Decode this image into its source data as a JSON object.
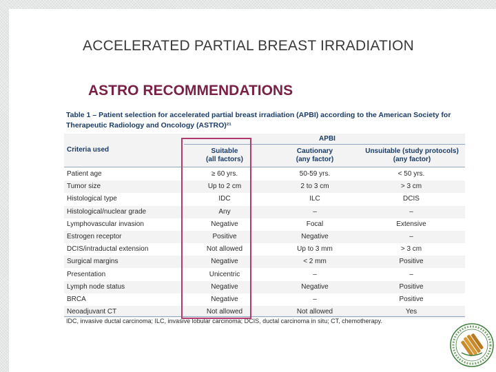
{
  "slide": {
    "title": "ACCELERATED PARTIAL BREAST IRRADIATION",
    "subtitle": "ASTRO RECOMMENDATIONS"
  },
  "table": {
    "caption": "Table 1 – Patient selection for accelerated partial breast irradiation (APBI) according to the American Society for Therapeutic Radiology and Oncology (ASTRO)²¹",
    "group_header": "APBI",
    "headers": {
      "criteria": "Criteria used",
      "suitable": "Suitable\n(all factors)",
      "cautionary": "Cautionary\n(any factor)",
      "unsuitable": "Unsuitable (study protocols)\n(any factor)"
    },
    "rows": [
      {
        "criteria": "Patient age",
        "suitable": "≥ 60 yrs.",
        "cautionary": "50-59 yrs.",
        "unsuitable": "< 50 yrs."
      },
      {
        "criteria": "Tumor size",
        "suitable": "Up to 2 cm",
        "cautionary": "2 to 3 cm",
        "unsuitable": "> 3 cm"
      },
      {
        "criteria": "Histological type",
        "suitable": "IDC",
        "cautionary": "ILC",
        "unsuitable": "DCIS"
      },
      {
        "criteria": "Histological/nuclear grade",
        "suitable": "Any",
        "cautionary": "–",
        "unsuitable": "–"
      },
      {
        "criteria": "Lymphovascular invasion",
        "suitable": "Negative",
        "cautionary": "Focal",
        "unsuitable": "Extensive"
      },
      {
        "criteria": "Estrogen receptor",
        "suitable": "Positive",
        "cautionary": "Negative",
        "unsuitable": "–"
      },
      {
        "criteria": "DCIS/intraductal extension",
        "suitable": "Not allowed",
        "cautionary": "Up to 3 mm",
        "unsuitable": "> 3 cm"
      },
      {
        "criteria": "Surgical margins",
        "suitable": "Negative",
        "cautionary": "< 2 mm",
        "unsuitable": "Positive"
      },
      {
        "criteria": "Presentation",
        "suitable": "Unicentric",
        "cautionary": "–",
        "unsuitable": "–"
      },
      {
        "criteria": "Lymph node status",
        "suitable": "Negative",
        "cautionary": "Negative",
        "unsuitable": "Positive"
      },
      {
        "criteria": "BRCA",
        "suitable": "Negative",
        "cautionary": "–",
        "unsuitable": "Positive"
      },
      {
        "criteria": "Neoadjuvant CT",
        "suitable": "Not allowed",
        "cautionary": "Not allowed",
        "unsuitable": "Yes"
      }
    ],
    "footnote": "IDC, invasive ductal carcinoma; ILC, invasive lobular carcinoma; DCIS, ductal carcinoma in situ; CT, chemotherapy."
  },
  "colors": {
    "title": "#3a3a3a",
    "subtitle": "#7a1f45",
    "highlight_box": "#b03a6e",
    "table_header": "#1a3b66"
  },
  "icons": {
    "seal": "university-seal-icon"
  }
}
